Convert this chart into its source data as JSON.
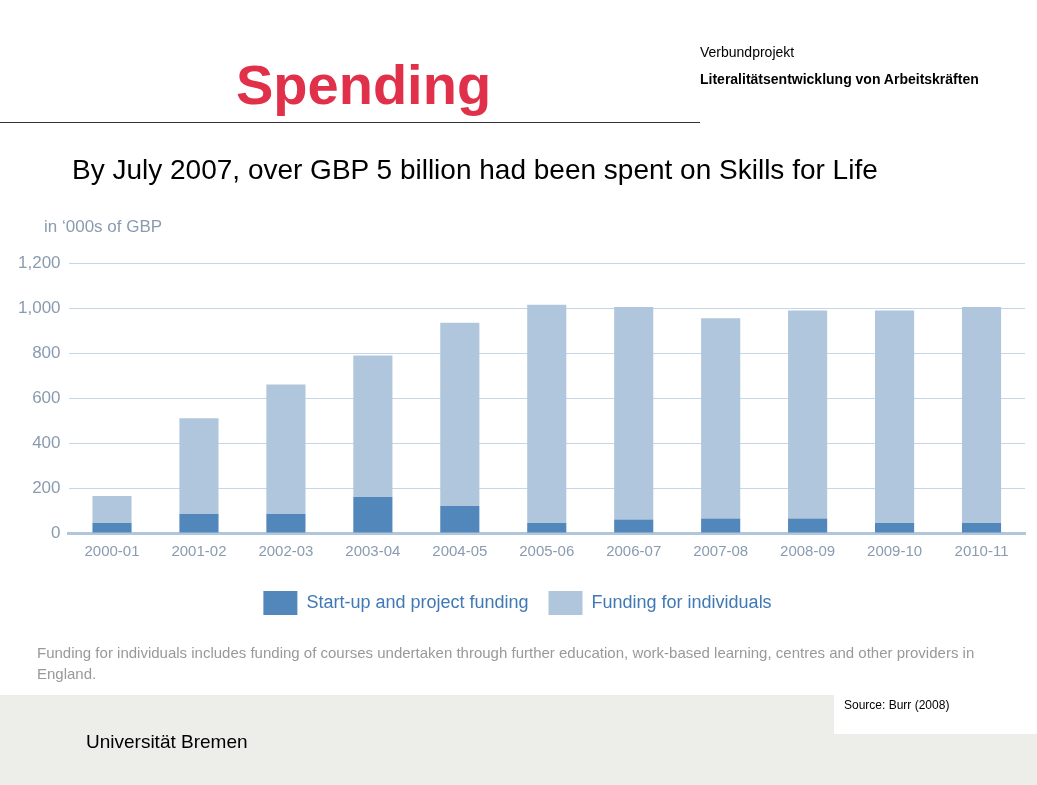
{
  "chart_data": {
    "type": "bar",
    "title": "Spending",
    "subtitle": "By July 2007, over GBP 5 billion had been spent on Skills for Life",
    "ylabel": "in ‘000s of GBP",
    "categories": [
      "2000-01",
      "2001-02",
      "2002-03",
      "2003-04",
      "2004-05",
      "2005-06",
      "2006-07",
      "2007-08",
      "2008-09",
      "2009-10",
      "2010-11"
    ],
    "series": [
      {
        "name": "Start-up and project funding",
        "color": "#5287bb",
        "values": [
          45,
          85,
          85,
          160,
          120,
          45,
          60,
          65,
          65,
          45,
          45
        ]
      },
      {
        "name": "Funding for individuals",
        "color": "#b0c6dc",
        "values": [
          120,
          425,
          575,
          630,
          815,
          970,
          945,
          890,
          925,
          945,
          960
        ]
      }
    ],
    "stacked": true,
    "ylim": [
      0,
      1200
    ],
    "yticks": [
      0,
      {
        "value": 200,
        "label": "200"
      },
      {
        "value": 400,
        "label": "400"
      },
      {
        "value": 600,
        "label": "600"
      },
      {
        "value": 800,
        "label": "800"
      },
      {
        "value": 1000,
        "label": "1,000"
      },
      {
        "value": 1200,
        "label": "1,200"
      }
    ],
    "grid": "y",
    "legend": "bottom",
    "annotations": [
      "Verbundprojekt",
      "Literalitätsentwicklung von Arbeitskräften",
      "Funding for individuals includes funding of courses undertaken through further education, work-based learning, centres and other providers in England.",
      "Source: Burr (2008)",
      "Universität Bremen"
    ]
  }
}
